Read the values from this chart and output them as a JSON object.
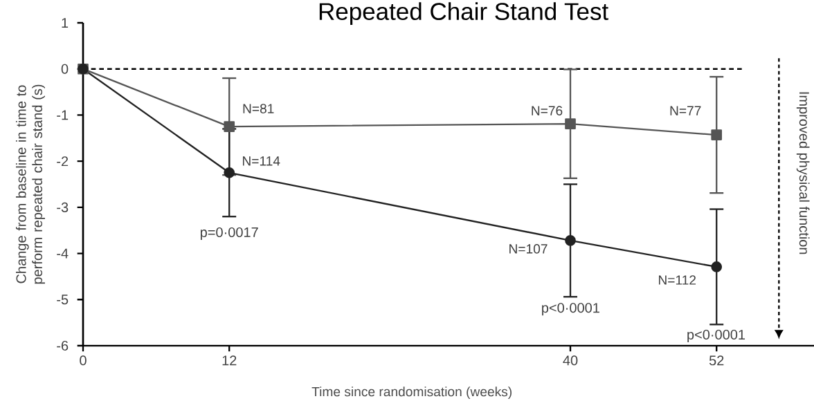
{
  "chart_data": {
    "type": "line",
    "title": "Repeated Chair Stand Test",
    "xlabel": "Time since randomisation (weeks)",
    "ylabel": "Change from baseline in time to perform repeated chair stand (s)",
    "x": [
      0,
      12,
      40,
      52
    ],
    "xlim": [
      0,
      60
    ],
    "xticks": [
      0,
      12,
      40,
      52
    ],
    "ylim": [
      -6,
      1
    ],
    "yticks": [
      -6,
      -5,
      -4,
      -3,
      -2,
      -1,
      0,
      1
    ],
    "grid": false,
    "line_style": "solid",
    "series": [
      {
        "color": "#555555",
        "marker": "square",
        "values": [
          0,
          -1.25,
          -1.19,
          -1.43
        ],
        "errors": [
          null,
          1.05,
          1.18,
          1.26
        ]
      },
      {
        "color": "#222222",
        "marker": "circle",
        "values": [
          0,
          -2.25,
          -3.72,
          -4.29
        ],
        "errors": [
          null,
          0.95,
          1.22,
          1.25
        ]
      }
    ],
    "ref_lines": [
      {
        "axis": "y",
        "value": 0,
        "color": "#000000",
        "line_style": "dashed"
      }
    ],
    "annotations": [
      {
        "text": "N=81",
        "x": 12,
        "y": -1.25
      },
      {
        "text": "N=114",
        "x": 12,
        "y": -2.25
      },
      "p=0·0017",
      {
        "text": "N=76",
        "x": 40,
        "y": -1.19
      },
      {
        "text": "N=107",
        "x": 40,
        "y": -3.72
      },
      "p<0·0001",
      {
        "text": "N=77",
        "x": 52,
        "y": -1.43
      },
      {
        "text": "N=112",
        "x": 52,
        "y": -4.29
      },
      "p<0·0001",
      "Improved physical function"
    ]
  }
}
